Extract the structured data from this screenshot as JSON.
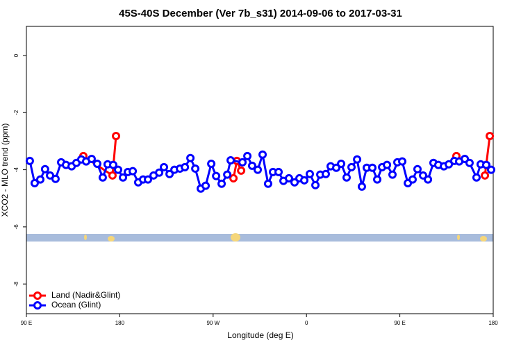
{
  "chart_data": {
    "type": "line",
    "title": "45S-40S December (Ver 7b_s31)   2014-09-06 to 2017-03-31",
    "x_label": "Longitude (deg E)",
    "y_label": "XCO2 - MLO trend (ppm)",
    "xlim": [
      90,
      540
    ],
    "ylim": [
      -9.04,
      1.02
    ],
    "xticks": [
      {
        "value": 90,
        "label": "90 E"
      },
      180,
      {
        "value": 270,
        "label": "90 W"
      },
      {
        "value": 360,
        "label": "0"
      },
      {
        "value": 450,
        "label": "90 E"
      },
      {
        "value": 540,
        "label": "180"
      }
    ],
    "yticks": [
      0,
      -2,
      -4,
      -6,
      -8
    ],
    "legend": "bottomleft",
    "series": [
      {
        "name": "Land (Nadir&Glint)",
        "color": "#ff0000",
        "x": [
          144.9,
          173,
          176.4,
          null,
          289.6,
          292.9,
          297,
          null,
          504.5,
          null,
          532,
          536.7
        ],
        "values": [
          -3.52,
          -4.2,
          -2.82,
          null,
          -4.3,
          -3.69,
          -4.03,
          null,
          -3.52,
          null,
          -4.2,
          -2.82
        ]
      },
      {
        "name": "Ocean (Glint)",
        "color": "#0000ff",
        "x": [
          93.3,
          98,
          103.4,
          108,
          112.8,
          118.1,
          123.5,
          128.2,
          133.6,
          138.2,
          142.9,
          147.6,
          152.9,
          158.3,
          163.6,
          168.3,
          173.7,
          178.4,
          183.1,
          187.8,
          192.5,
          197.8,
          202.5,
          207.2,
          212.6,
          218,
          222.6,
          228,
          232.7,
          238,
          242.8,
          248.1,
          252.8,
          258.1,
          262.8,
          268.2,
          272.9,
          278.2,
          283.6,
          286.9,
          298.3,
          303,
          307.6,
          313,
          317.7,
          323,
          327.7,
          333.1,
          337.8,
          343.1,
          348.5,
          353.2,
          357.9,
          363.2,
          368.6,
          373.3,
          378.6,
          383.3,
          388.7,
          393.4,
          398.7,
          403.4,
          408.8,
          413.4,
          418.1,
          423.5,
          428.2,
          432.9,
          437.6,
          442.9,
          447.6,
          452.3,
          457.7,
          462.3,
          467,
          472.4,
          477.1,
          482.4,
          487.1,
          492.5,
          497.2,
          502.5,
          507.2,
          512.6,
          517.2,
          523.9,
          527.9,
          533.3,
          538
        ],
        "values": [
          -3.69,
          -4.47,
          -4.34,
          -3.98,
          -4.2,
          -4.32,
          -3.74,
          -3.83,
          -3.88,
          -3.76,
          -3.64,
          -3.71,
          -3.62,
          -3.79,
          -4.27,
          -3.81,
          -3.83,
          -4.0,
          -4.27,
          -4.08,
          -4.05,
          -4.44,
          -4.34,
          -4.34,
          -4.2,
          -4.1,
          -3.91,
          -4.15,
          -4.0,
          -3.96,
          -3.91,
          -3.59,
          -3.96,
          -4.66,
          -4.56,
          -3.79,
          -4.22,
          -4.49,
          -4.17,
          -3.67,
          -3.74,
          -3.52,
          -3.86,
          -4.0,
          -3.47,
          -4.49,
          -4.08,
          -4.08,
          -4.39,
          -4.3,
          -4.44,
          -4.3,
          -4.37,
          -4.15,
          -4.54,
          -4.17,
          -4.15,
          -3.88,
          -3.93,
          -3.79,
          -4.27,
          -3.91,
          -3.64,
          -4.59,
          -3.93,
          -3.93,
          -4.34,
          -3.91,
          -3.83,
          -4.17,
          -3.74,
          -3.71,
          -4.47,
          -4.34,
          -3.98,
          -4.2,
          -4.34,
          -3.76,
          -3.83,
          -3.88,
          -3.81,
          -3.69,
          -3.71,
          -3.62,
          -3.76,
          -4.27,
          -3.81,
          -3.83,
          -4.0
        ]
      }
    ]
  }
}
